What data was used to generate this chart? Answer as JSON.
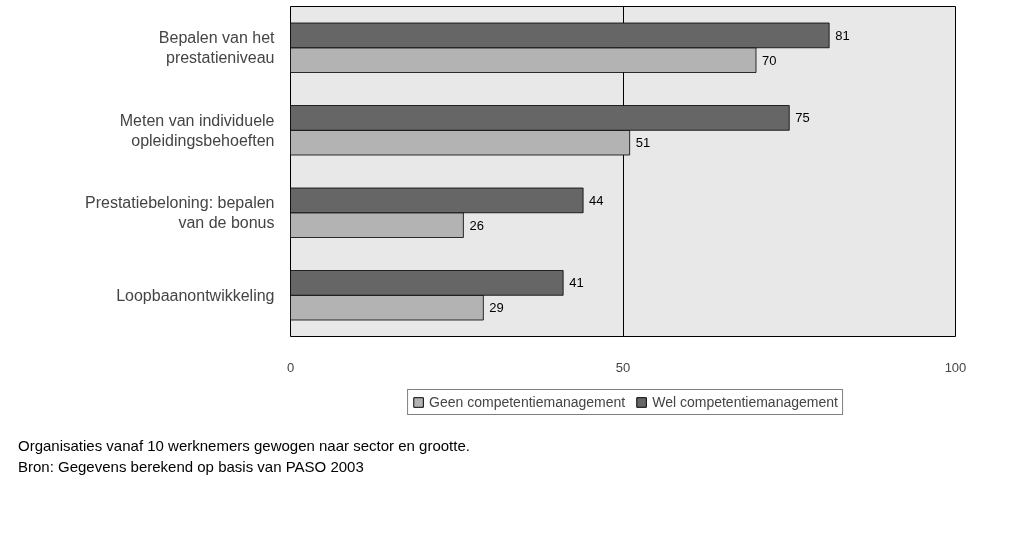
{
  "chart_data": {
    "type": "bar",
    "orientation": "horizontal",
    "categories": [
      "Bepalen van het prestatieniveau",
      "Meten van individuele opleidingsbehoeften",
      "Prestatiebeloning: bepalen van de bonus",
      "Loopbaanontwikkeling"
    ],
    "series": [
      {
        "name": "Geen competentiemanagement",
        "color": "#b3b3b3",
        "values": [
          70,
          51,
          26,
          29
        ]
      },
      {
        "name": "Wel competentiemanagement",
        "color": "#666666",
        "values": [
          81,
          75,
          44,
          41
        ]
      }
    ],
    "xlim": [
      0,
      100
    ],
    "xticks": [
      0,
      50,
      100
    ],
    "grid": "x",
    "legend": "bottom",
    "data_labels": true,
    "annotations": [
      "Organisaties vanaf 10 werknemers gewogen naar sector en grootte.",
      "Bron: Gegevens berekend op basis van PASO 2003"
    ]
  }
}
